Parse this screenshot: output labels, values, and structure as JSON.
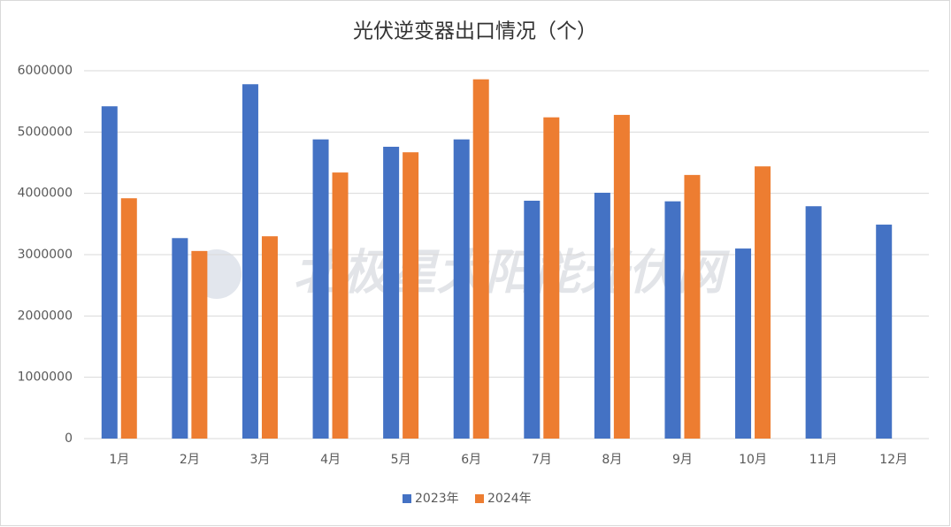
{
  "chart_data": {
    "type": "bar",
    "title": "光伏逆变器出口情况（个）",
    "watermark": "北极星太阳能光伏网",
    "categories": [
      "1月",
      "2月",
      "3月",
      "4月",
      "5月",
      "6月",
      "7月",
      "8月",
      "9月",
      "10月",
      "11月",
      "12月"
    ],
    "series": [
      {
        "name": "2023年",
        "color": "#4472c4",
        "values": [
          5420000,
          3270000,
          5780000,
          4880000,
          4760000,
          4880000,
          3880000,
          4010000,
          3870000,
          3100000,
          3790000,
          3490000
        ]
      },
      {
        "name": "2024年",
        "color": "#ed7d31",
        "values": [
          3920000,
          3060000,
          3300000,
          4340000,
          4670000,
          5860000,
          5240000,
          5280000,
          4300000,
          4440000,
          null,
          null
        ]
      }
    ],
    "ylim": [
      0,
      6000000
    ],
    "yticks": [
      0,
      1000000,
      2000000,
      3000000,
      4000000,
      5000000,
      6000000
    ],
    "grid": true,
    "legend": "bottom"
  }
}
